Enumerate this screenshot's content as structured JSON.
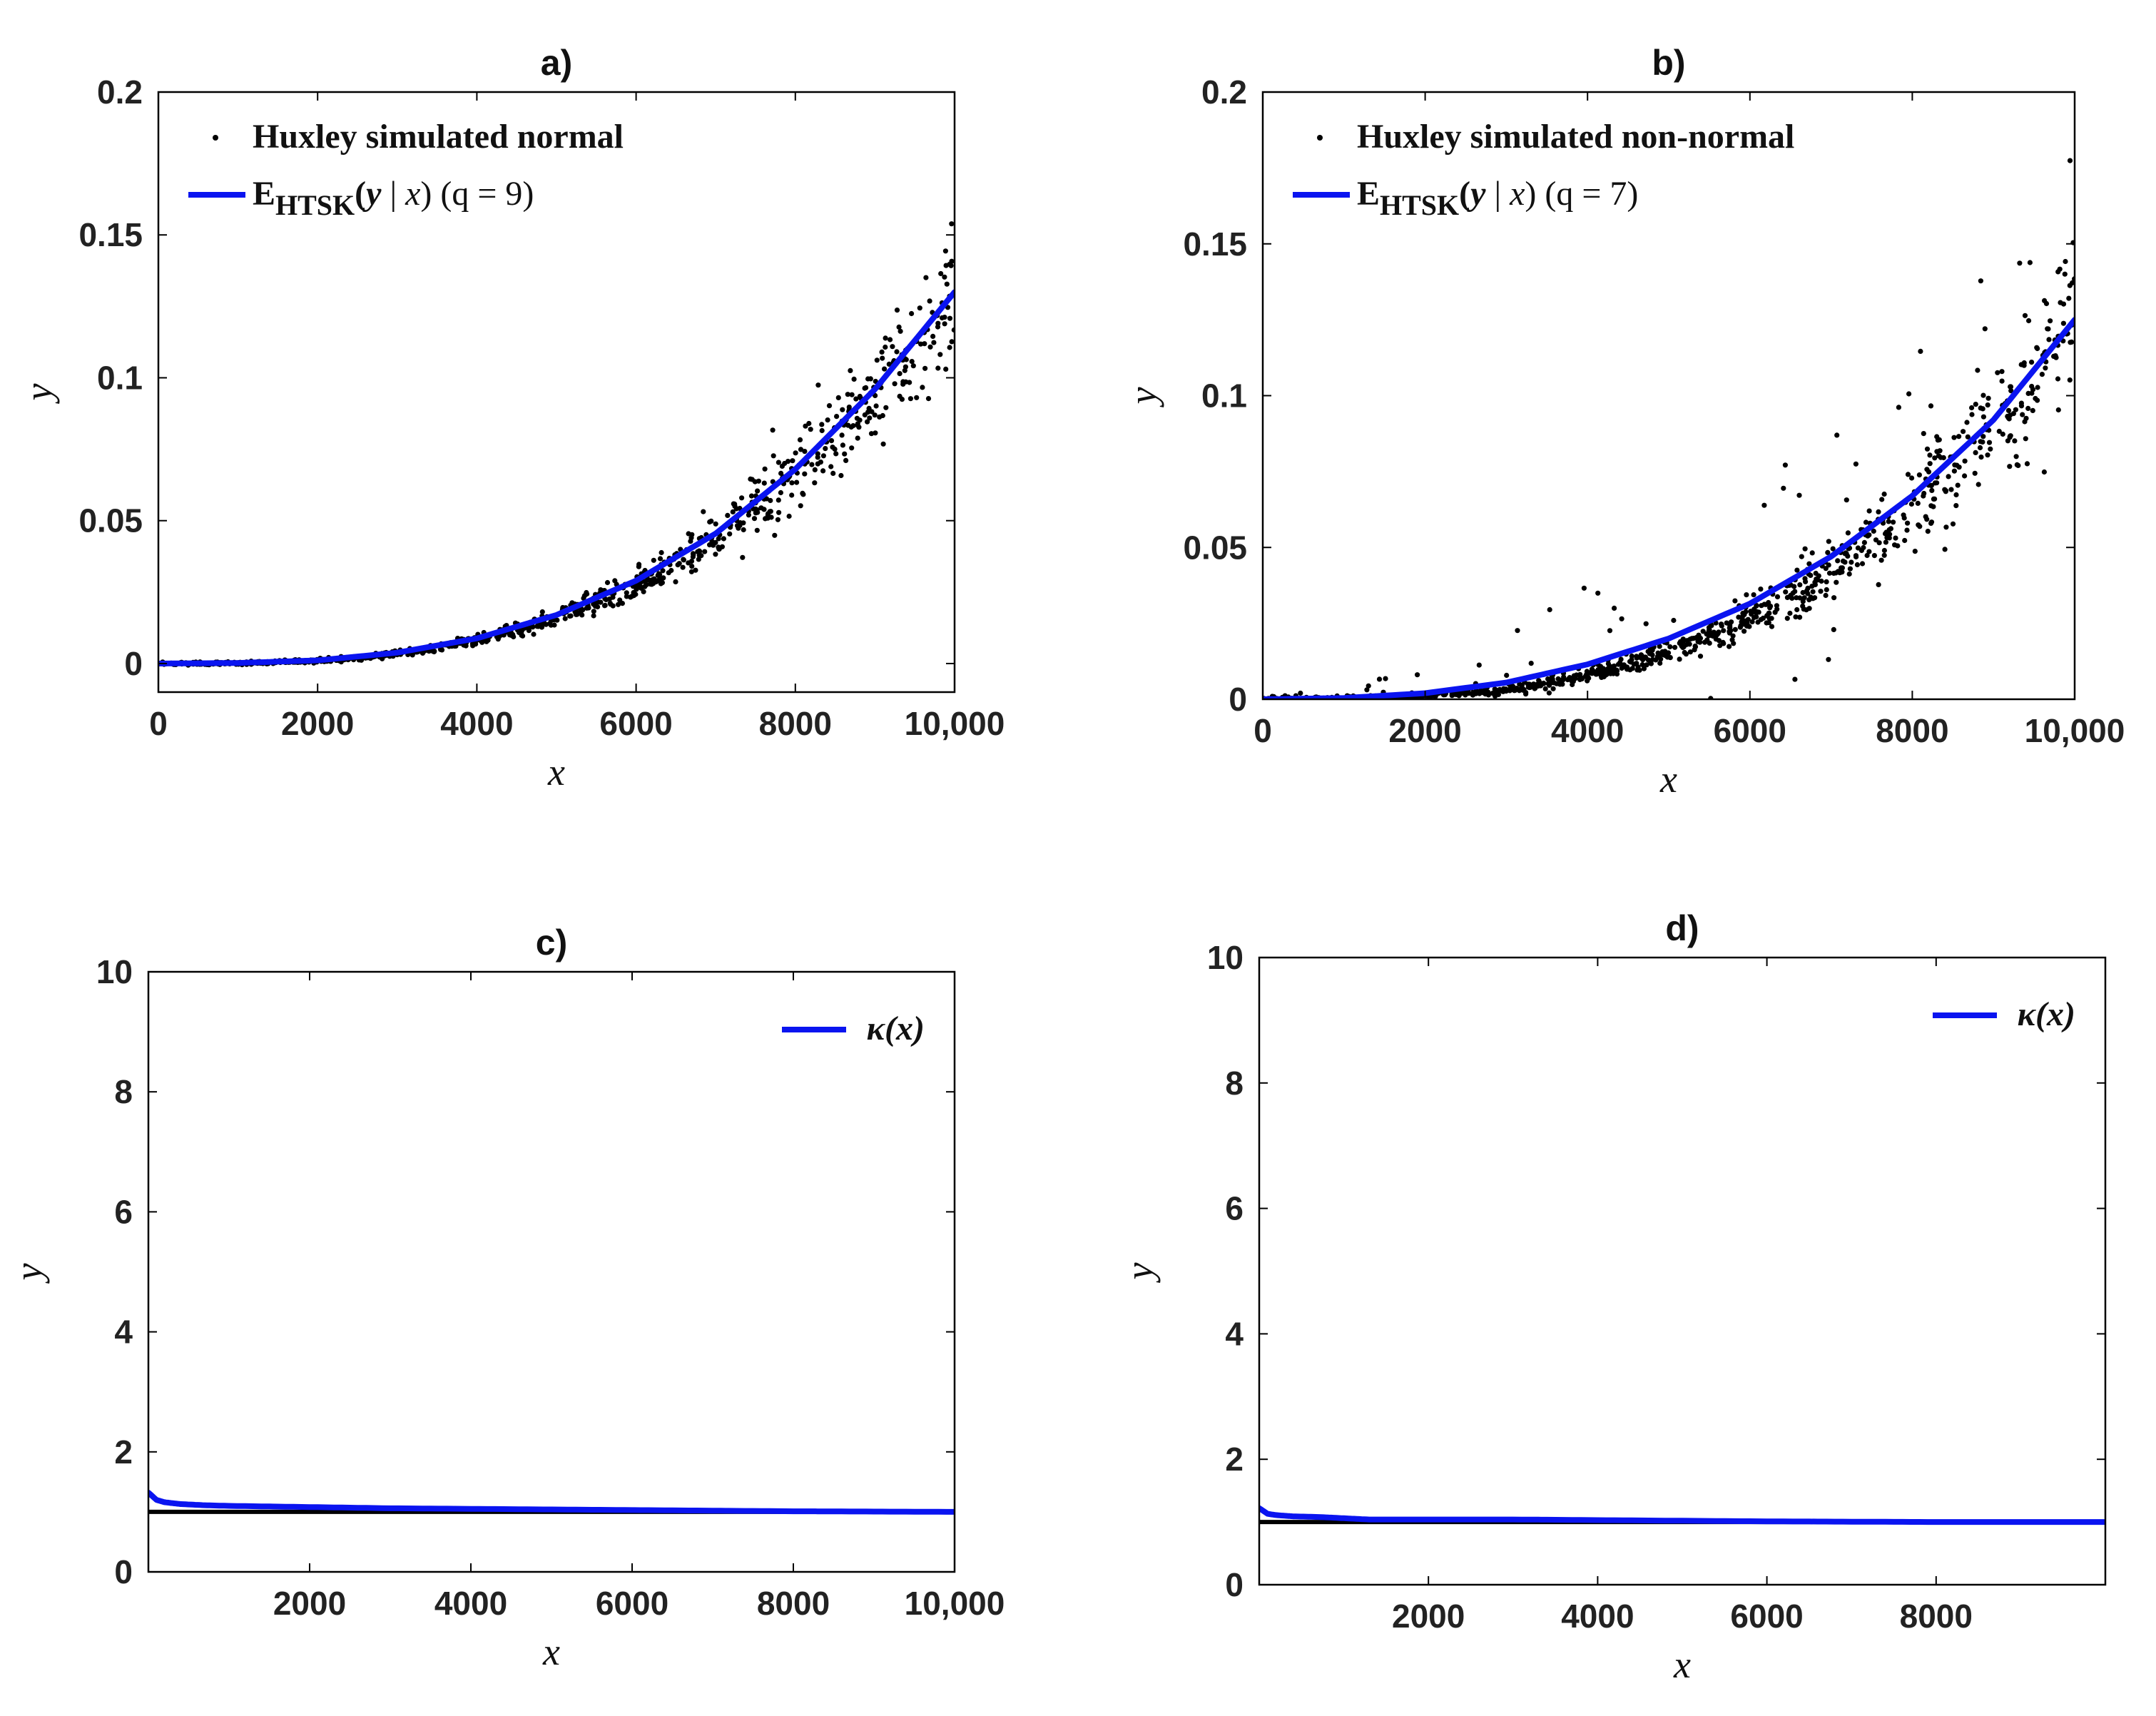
{
  "colors": {
    "fit": "#0a14f0",
    "scatter": "#000000",
    "reference": "#000000",
    "frame": "#000000"
  },
  "chart_data": [
    {
      "id": "a",
      "type": "scatter",
      "title": "a)",
      "xlabel": "x",
      "ylabel": "y",
      "xlim": [
        0,
        10000
      ],
      "ylim": [
        -0.01,
        0.2
      ],
      "xticks": [
        0,
        2000,
        4000,
        6000,
        8000,
        10000
      ],
      "xtick_labels": [
        "0",
        "2000",
        "4000",
        "6000",
        "8000",
        "10,000"
      ],
      "yticks": [
        0,
        0.05,
        0.1,
        0.15,
        0.2
      ],
      "ytick_labels": [
        "0",
        "0.05",
        "0.1",
        "0.15",
        "0.2"
      ],
      "legend": {
        "position": "top-left",
        "entries": [
          {
            "kind": "marker",
            "text": "Huxley simulated normal"
          },
          {
            "kind": "line",
            "main": "E",
            "sub": "HTSK",
            "var": "y",
            "cond": "x",
            "param": "(q = 9)"
          }
        ]
      },
      "series": [
        {
          "name": "Huxley simulated normal",
          "kind": "scatter",
          "generator": "huxley-normal",
          "n_points": 1000,
          "approx_curve": "0.13*(x/10000)^3",
          "approx_spread_at_10000": 0.012
        },
        {
          "name": "E_HTSK(y | x) (q = 9)",
          "kind": "line",
          "x": [
            0,
            1000,
            2000,
            3000,
            4000,
            5000,
            6000,
            7000,
            8000,
            9000,
            10000
          ],
          "y": [
            0,
            0.0002,
            0.0011,
            0.0038,
            0.0088,
            0.017,
            0.029,
            0.0455,
            0.068,
            0.096,
            0.13
          ]
        }
      ]
    },
    {
      "id": "b",
      "type": "scatter",
      "title": "b)",
      "xlabel": "x",
      "ylabel": "y",
      "xlim": [
        0,
        10000
      ],
      "ylim": [
        0,
        0.2
      ],
      "xticks": [
        0,
        2000,
        4000,
        6000,
        8000,
        10000
      ],
      "xtick_labels": [
        "0",
        "2000",
        "4000",
        "6000",
        "8000",
        "10,000"
      ],
      "yticks": [
        0,
        0.05,
        0.1,
        0.15,
        0.2
      ],
      "ytick_labels": [
        "0",
        "0.05",
        "0.1",
        "0.15",
        "0.2"
      ],
      "legend": {
        "position": "top-left",
        "entries": [
          {
            "kind": "marker",
            "text": "Huxley simulated non-normal"
          },
          {
            "kind": "line",
            "main": "E",
            "sub": "HTSK",
            "var": "y",
            "cond": "x",
            "param": "(q = 7)"
          }
        ]
      },
      "series": [
        {
          "name": "Huxley simulated non-normal",
          "kind": "scatter",
          "generator": "huxley-nonnormal",
          "n_points": 1000,
          "approx_curve": "0.125*(x/10000)^3",
          "approx_spread_at_10000": 0.02
        },
        {
          "name": "E_HTSK(y | x) (q = 7)",
          "kind": "line",
          "x": [
            0,
            1000,
            2000,
            3000,
            4000,
            5000,
            6000,
            7000,
            8000,
            9000,
            10000
          ],
          "y": [
            0,
            0.0004,
            0.002,
            0.0055,
            0.0115,
            0.02,
            0.0315,
            0.047,
            0.067,
            0.092,
            0.125
          ]
        }
      ]
    },
    {
      "id": "c",
      "type": "line",
      "title": "c)",
      "xlabel": "x",
      "ylabel": "y",
      "xlim": [
        0,
        10000
      ],
      "ylim": [
        0,
        10
      ],
      "xticks": [
        2000,
        4000,
        6000,
        8000,
        10000
      ],
      "xtick_labels": [
        "2000",
        "4000",
        "6000",
        "8000",
        "10,000"
      ],
      "yticks": [
        0,
        2,
        4,
        6,
        8,
        10
      ],
      "ytick_labels": [
        "0",
        "2",
        "4",
        "6",
        "8",
        "10"
      ],
      "legend": {
        "position": "top-right",
        "entries": [
          {
            "kind": "line",
            "text": "κ(x)"
          }
        ]
      },
      "series": [
        {
          "name": "κ(x)",
          "kind": "line",
          "x": [
            1,
            100,
            200,
            400,
            700,
            1000,
            2000,
            3000,
            4000,
            5000,
            6000,
            7000,
            8000,
            9000,
            10000
          ],
          "y": [
            1.32,
            1.2,
            1.16,
            1.13,
            1.11,
            1.1,
            1.08,
            1.06,
            1.05,
            1.04,
            1.03,
            1.02,
            1.01,
            1.005,
            1.0
          ]
        },
        {
          "name": "reference",
          "kind": "reference",
          "y_const": 1.0
        }
      ]
    },
    {
      "id": "d",
      "type": "line",
      "title": "d)",
      "xlabel": "x",
      "ylabel": "y",
      "xlim": [
        0,
        10000
      ],
      "ylim": [
        0,
        10
      ],
      "xticks": [
        2000,
        4000,
        6000,
        8000
      ],
      "xtick_labels": [
        "2000",
        "4000",
        "6000",
        "8000"
      ],
      "yticks": [
        0,
        2,
        4,
        6,
        8,
        10
      ],
      "ytick_labels": [
        "0",
        "2",
        "4",
        "6",
        "8",
        "10"
      ],
      "legend": {
        "position": "top-right",
        "entries": [
          {
            "kind": "line",
            "text": "κ(x)"
          }
        ]
      },
      "series": [
        {
          "name": "κ(x)",
          "kind": "line",
          "x": [
            1,
            100,
            200,
            400,
            700,
            1000,
            1300,
            2000,
            3000,
            4000,
            5000,
            6000,
            7000,
            8000,
            9000,
            10000
          ],
          "y": [
            1.22,
            1.13,
            1.11,
            1.09,
            1.08,
            1.06,
            1.04,
            1.04,
            1.04,
            1.03,
            1.02,
            1.01,
            1.005,
            1.0,
            1.0,
            1.0
          ]
        },
        {
          "name": "reference",
          "kind": "reference",
          "y_const": 1.0
        }
      ]
    }
  ]
}
